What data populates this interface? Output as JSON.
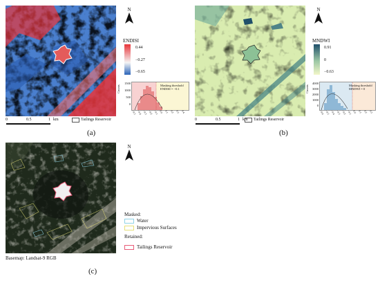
{
  "panel_a": {
    "label": "(a)",
    "north": "N",
    "legend_title": "ENDISI",
    "legend_values": [
      "0.44",
      "−0.27",
      "−0.65"
    ],
    "scale_ticks": [
      "0",
      "0.5",
      "1"
    ],
    "scale_unit": "km",
    "reservoir_label": "Tailings Reservoir",
    "hist_note_title": "Masking threshold",
    "hist_note_value": "ENDISI = −0.1",
    "hist_yticks": [
      "1500",
      "1000",
      "500",
      "0"
    ],
    "hist_ylabel": "Counts",
    "hist_xticks": [
      "−0.5",
      "−0.4",
      "−0.3",
      "−0.2",
      "−0.1",
      "0.0",
      "0.1",
      "0.2",
      "0.3",
      "0.4"
    ]
  },
  "panel_b": {
    "label": "(b)",
    "north": "N",
    "legend_title": "MNDWI",
    "legend_values": [
      "0.91",
      "0",
      "−0.63"
    ],
    "scale_ticks": [
      "0",
      "0.5",
      "1"
    ],
    "scale_unit": "km",
    "reservoir_label": "Tailings Reservoir",
    "hist_note_title": "Masking threshold",
    "hist_note_value": "MNDWI = 0",
    "hist_yticks": [
      "4000",
      "3000",
      "2000",
      "1000",
      "0"
    ],
    "hist_ylabel": "Counts",
    "hist_xticks": [
      "−0.6",
      "−0.5",
      "−0.4",
      "−0.3",
      "−0.2",
      "−0.1",
      "0.0",
      "0.1",
      "0.2",
      "0.3"
    ]
  },
  "panel_c": {
    "label": "(c)",
    "north": "N",
    "basemap": "Basemap: Landsat-9 RGB",
    "masked_title": "Masked:",
    "water": "Water",
    "impervious": "Impervious Surfaces",
    "retained_title": "Retained:",
    "reservoir": "Tailings Reservoir"
  },
  "colors": {
    "endisi_high": "#e8353a",
    "endisi_mid": "#f4f4f4",
    "endisi_low": "#2a63b8",
    "mndwi_high": "#1f4f6a",
    "mndwi_mid": "#9cc7a5",
    "mndwi_low": "#f3f7c8",
    "water_outline": "#8fd3e6",
    "impervious_outline": "#e6e07a",
    "reservoir_outline": "#e85b78"
  }
}
